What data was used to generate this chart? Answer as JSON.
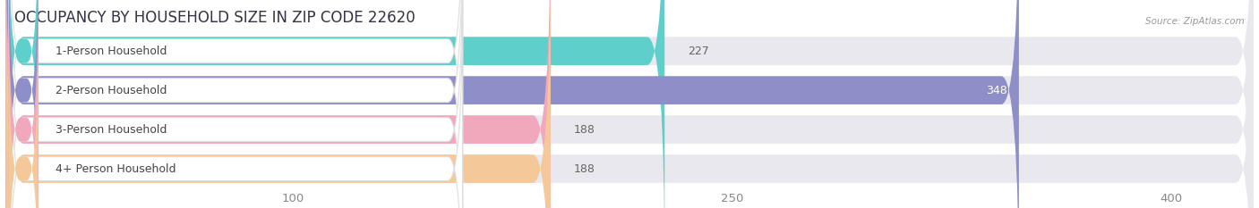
{
  "title": "OCCUPANCY BY HOUSEHOLD SIZE IN ZIP CODE 22620",
  "source": "Source: ZipAtlas.com",
  "categories": [
    "1-Person Household",
    "2-Person Household",
    "3-Person Household",
    "4+ Person Household"
  ],
  "values": [
    227,
    348,
    188,
    188
  ],
  "bar_colors": [
    "#5ECFCA",
    "#8E8EC8",
    "#F2A8BC",
    "#F5C89A"
  ],
  "figure_bg": "#ffffff",
  "chart_bg": "#f0f0f5",
  "bar_bg_color": "#e8e8ee",
  "row_bg_color": "#f8f8fc",
  "xlim_max": 430,
  "xticks": [
    100,
    250,
    400
  ],
  "title_fontsize": 12,
  "label_fontsize": 9,
  "value_fontsize": 9,
  "tick_fontsize": 9.5,
  "figsize": [
    14.06,
    2.33
  ],
  "dpi": 100
}
